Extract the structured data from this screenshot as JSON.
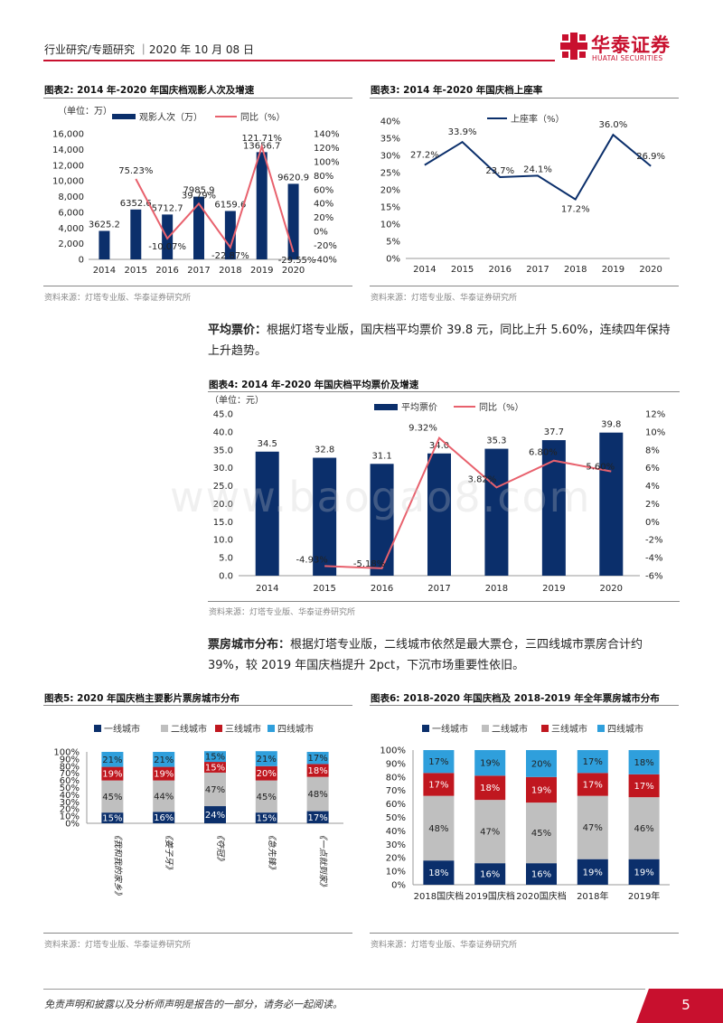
{
  "header": {
    "breadcrumb": "行业研究/专题研究 ｜2020 年 10 月 08 日",
    "logo_cn": "华泰证券",
    "logo_en": "HUATAI SECURITIES"
  },
  "figures": {
    "fig2": {
      "title": "图表2:  2014 年-2020 年国庆档观影人次及增速",
      "unit": "（单位：万）",
      "legend_bar": "观影人次（万）",
      "legend_line": "同比（%）",
      "source": "资料来源：灯塔专业版、华泰证券研究所"
    },
    "fig3": {
      "title": "图表3:  2014 年-2020 年国庆档上座率",
      "legend_line": "上座率（%）",
      "source": "资料来源：灯塔专业版、华泰证券研究所"
    },
    "fig4": {
      "title": "图表4:  2014 年-2020 年国庆档平均票价及增速",
      "unit": "（单位：元）",
      "legend_bar": "平均票价",
      "legend_line": "同比（%）",
      "source": "资料来源：灯塔专业版、华泰证券研究所"
    },
    "fig5": {
      "title": "图表5:  2020 年国庆档主要影片票房城市分布",
      "source": "资料来源：灯塔专业版、华泰证券研究所"
    },
    "fig6": {
      "title": "图表6:  2018-2020 年国庆档及 2018-2019 年全年票房城市分布",
      "source": "资料来源：灯塔专业版、华泰证券研究所"
    }
  },
  "paragraphs": {
    "p1_bold": "平均票价：",
    "p1_text": "根据灯塔专业版，国庆档平均票价 39.8 元，同比上升 5.60%，连续四年保持上升趋势。",
    "p2_bold": "票房城市分布：",
    "p2_text": "根据灯塔专业版，二线城市依然是最大票仓，三四线城市票房合计约 39%，较 2019 年国庆档提升 2pct，下沉市场重要性依旧。"
  },
  "footer": {
    "disclaimer": "免责声明和披露以及分析师声明是报告的一部分，请务必一起阅读。",
    "page": "5"
  },
  "watermark": "www.baogao8.com",
  "colors": {
    "navy": "#0b2f6b",
    "pink": "#e8616d",
    "red": "#c0171f",
    "gray": "#bfbfbf",
    "sky": "#2f9fdc",
    "brand": "#c8102e"
  },
  "chart_data": [
    {
      "id": "fig2",
      "type": "bar",
      "categories": [
        "2014",
        "2015",
        "2016",
        "2017",
        "2018",
        "2019",
        "2020"
      ],
      "series": [
        {
          "name": "观影人次（万）",
          "type": "bar",
          "axis": "left",
          "values": [
            3625.2,
            6352.6,
            5712.7,
            7985.9,
            6159.6,
            13656.7,
            9620.9
          ]
        },
        {
          "name": "同比（%）",
          "type": "line",
          "axis": "right",
          "values": [
            null,
            75.23,
            -10.07,
            39.79,
            -22.87,
            121.71,
            -29.55
          ]
        }
      ],
      "bar_labels": [
        "3625.2",
        "6352.6",
        "5712.7",
        "7985.9",
        "6159.6",
        "13656.7",
        "9620.9"
      ],
      "line_labels": [
        "",
        "75.23%",
        "-10.07%",
        "39.79%",
        "-22.87%",
        "121.71%",
        "-29.55%"
      ],
      "ylim_left": [
        0,
        16000
      ],
      "yticks_left": [
        "0",
        "2,000",
        "4,000",
        "6,000",
        "8,000",
        "10,000",
        "12,000",
        "14,000",
        "16,000"
      ],
      "ylim_right": [
        -40,
        140
      ],
      "yticks_right": [
        "-40%",
        "-20%",
        "0%",
        "20%",
        "40%",
        "60%",
        "80%",
        "100%",
        "120%",
        "140%"
      ]
    },
    {
      "id": "fig3",
      "type": "line",
      "categories": [
        "2014",
        "2015",
        "2016",
        "2017",
        "2018",
        "2019",
        "2020"
      ],
      "series": [
        {
          "name": "上座率（%）",
          "values": [
            27.2,
            33.9,
            23.7,
            24.1,
            17.2,
            36.0,
            26.9
          ]
        }
      ],
      "labels": [
        "27.2%",
        "33.9%",
        "23.7%",
        "24.1%",
        "17.2%",
        "36.0%",
        "26.9%"
      ],
      "ylim": [
        0,
        40
      ],
      "yticks": [
        "0%",
        "5%",
        "10%",
        "15%",
        "20%",
        "25%",
        "30%",
        "35%",
        "40%"
      ]
    },
    {
      "id": "fig4",
      "type": "bar",
      "categories": [
        "2014",
        "2015",
        "2016",
        "2017",
        "2018",
        "2019",
        "2020"
      ],
      "series": [
        {
          "name": "平均票价",
          "type": "bar",
          "axis": "left",
          "values": [
            34.5,
            32.8,
            31.1,
            34.0,
            35.3,
            37.7,
            39.8
          ]
        },
        {
          "name": "同比（%）",
          "type": "line",
          "axis": "right",
          "values": [
            null,
            -4.93,
            -5.18,
            9.32,
            3.82,
            6.8,
            5.6
          ]
        }
      ],
      "bar_labels": [
        "34.5",
        "32.8",
        "31.1",
        "34.0",
        "35.3",
        "37.7",
        "39.8"
      ],
      "line_labels": [
        "",
        "-4.93%",
        "-5.18%",
        "9.32%",
        "3.82%",
        "6.80%",
        "5.60%"
      ],
      "ylim_left": [
        0,
        45
      ],
      "yticks_left": [
        "0.0",
        "5.0",
        "10.0",
        "15.0",
        "20.0",
        "25.0",
        "30.0",
        "35.0",
        "40.0",
        "45.0"
      ],
      "ylim_right": [
        -6,
        12
      ],
      "yticks_right": [
        "-6%",
        "-4%",
        "-2%",
        "0%",
        "2%",
        "4%",
        "6%",
        "8%",
        "10%",
        "12%"
      ]
    },
    {
      "id": "fig5",
      "type": "bar",
      "stacked": true,
      "percent": true,
      "categories": [
        "《我和我的家乡》",
        "《姜子牙》",
        "《夺冠》",
        "《急先锋》",
        "《一点就到家》"
      ],
      "series": [
        {
          "name": "一线城市",
          "values": [
            15,
            16,
            24,
            15,
            17
          ]
        },
        {
          "name": "二线城市",
          "values": [
            45,
            44,
            47,
            45,
            48
          ]
        },
        {
          "name": "三线城市",
          "values": [
            19,
            19,
            15,
            20,
            18
          ]
        },
        {
          "name": "四线城市",
          "values": [
            21,
            21,
            15,
            21,
            17
          ]
        }
      ],
      "ylim": [
        0,
        100
      ],
      "yticks": [
        "0%",
        "10%",
        "20%",
        "30%",
        "40%",
        "50%",
        "60%",
        "70%",
        "80%",
        "90%",
        "100%"
      ]
    },
    {
      "id": "fig6",
      "type": "bar",
      "stacked": true,
      "percent": true,
      "categories": [
        "2018国庆档",
        "2019国庆档",
        "2020国庆档",
        "2018年",
        "2019年"
      ],
      "series": [
        {
          "name": "一线城市",
          "values": [
            18,
            16,
            16,
            19,
            19
          ]
        },
        {
          "name": "二线城市",
          "values": [
            48,
            47,
            45,
            47,
            46
          ]
        },
        {
          "name": "三线城市",
          "values": [
            17,
            18,
            19,
            17,
            17
          ]
        },
        {
          "name": "四线城市",
          "values": [
            17,
            19,
            20,
            17,
            18
          ]
        }
      ],
      "ylim": [
        0,
        100
      ],
      "yticks": [
        "0%",
        "10%",
        "20%",
        "30%",
        "40%",
        "50%",
        "60%",
        "70%",
        "80%",
        "90%",
        "100%"
      ]
    }
  ]
}
